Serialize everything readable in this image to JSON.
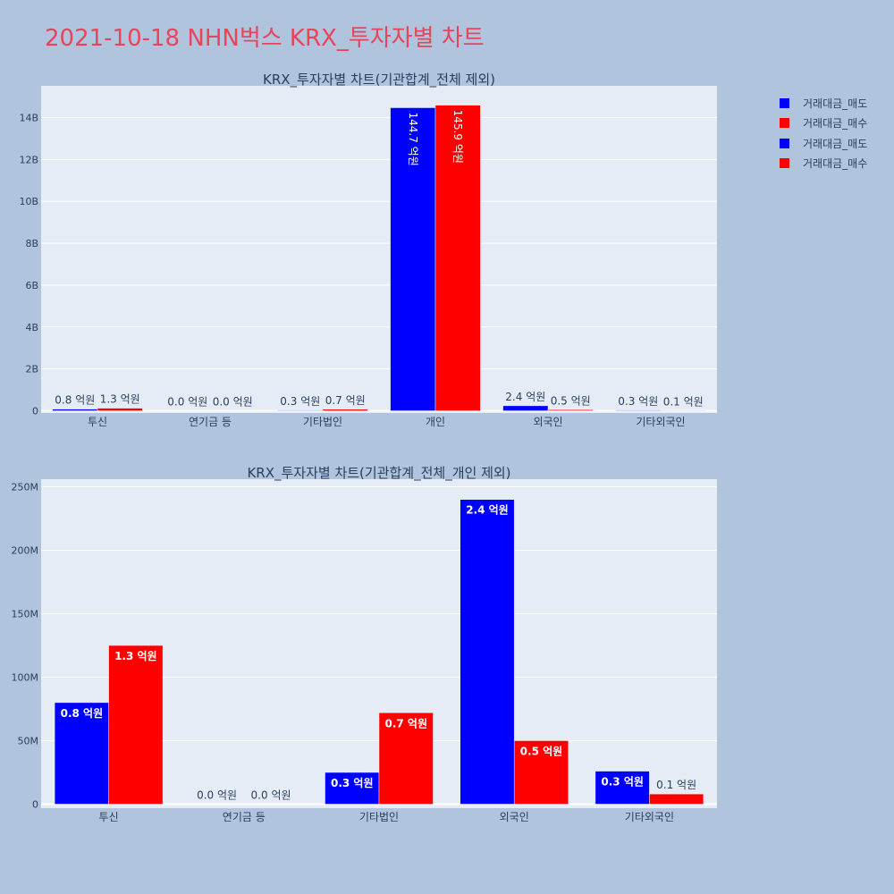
{
  "title": "2021-10-18 NHN벅스 KRX_투자자별 차트",
  "colors": {
    "sell": "#0000ff",
    "buy": "#ff0000",
    "plot_bg": "#e5ecf6",
    "background": "#b0c4de",
    "text": "#2a3f5f",
    "title": "#e8455a"
  },
  "legend": [
    {
      "label": "거래대금_매도",
      "color": "#0000ff"
    },
    {
      "label": "거래대금_매수",
      "color": "#ff0000"
    },
    {
      "label": "거래대금_매도",
      "color": "#0000ff"
    },
    {
      "label": "거래대금_매수",
      "color": "#ff0000"
    }
  ],
  "chart_data": [
    {
      "type": "bar",
      "title": "KRX_투자자별 차트(기관합계_전체 제외)",
      "categories": [
        "투신",
        "연기금 등",
        "기타법인",
        "개인",
        "외국인",
        "기타외국인"
      ],
      "series": [
        {
          "name": "거래대금_매도",
          "color": "#0000ff",
          "values": [
            80000000,
            0,
            25000000,
            14470000000,
            240000000,
            26000000
          ],
          "labels": [
            "0.8 억원",
            "0.0 억원",
            "0.3 억원",
            "144.7 억원",
            "2.4 억원",
            "0.3 억원"
          ]
        },
        {
          "name": "거래대금_매수",
          "color": "#ff0000",
          "values": [
            125000000,
            0,
            72000000,
            14590000000,
            50000000,
            8000000
          ],
          "labels": [
            "1.3 억원",
            "0.0 억원",
            "0.7 억원",
            "145.9 억원",
            "0.5 억원",
            "0.1 억원"
          ]
        }
      ],
      "y_ticks": [
        0,
        2000000000,
        4000000000,
        6000000000,
        8000000000,
        10000000000,
        12000000000,
        14000000000
      ],
      "y_tick_labels": [
        "0",
        "2B",
        "4B",
        "6B",
        "8B",
        "10B",
        "12B",
        "14B"
      ],
      "ylim": [
        0,
        15500000000
      ],
      "grid": true
    },
    {
      "type": "bar",
      "title": "KRX_투자자별 차트(기관합계_전체_개인 제외)",
      "categories": [
        "투신",
        "연기금 등",
        "기타법인",
        "외국인",
        "기타외국인"
      ],
      "series": [
        {
          "name": "거래대금_매도",
          "color": "#0000ff",
          "values": [
            80000000,
            0,
            25000000,
            240000000,
            26000000
          ],
          "labels": [
            "0.8 억원",
            "0.0 억원",
            "0.3 억원",
            "2.4 억원",
            "0.3 억원"
          ]
        },
        {
          "name": "거래대금_매수",
          "color": "#ff0000",
          "values": [
            125000000,
            0,
            72000000,
            50000000,
            8000000
          ],
          "labels": [
            "1.3 억원",
            "0.0 억원",
            "0.7 억원",
            "0.5 억원",
            "0.1 억원"
          ]
        }
      ],
      "y_ticks": [
        0,
        50000000,
        100000000,
        150000000,
        200000000,
        250000000
      ],
      "y_tick_labels": [
        "0",
        "50M",
        "100M",
        "150M",
        "200M",
        "250M"
      ],
      "ylim": [
        0,
        253000000
      ],
      "grid": true
    }
  ]
}
